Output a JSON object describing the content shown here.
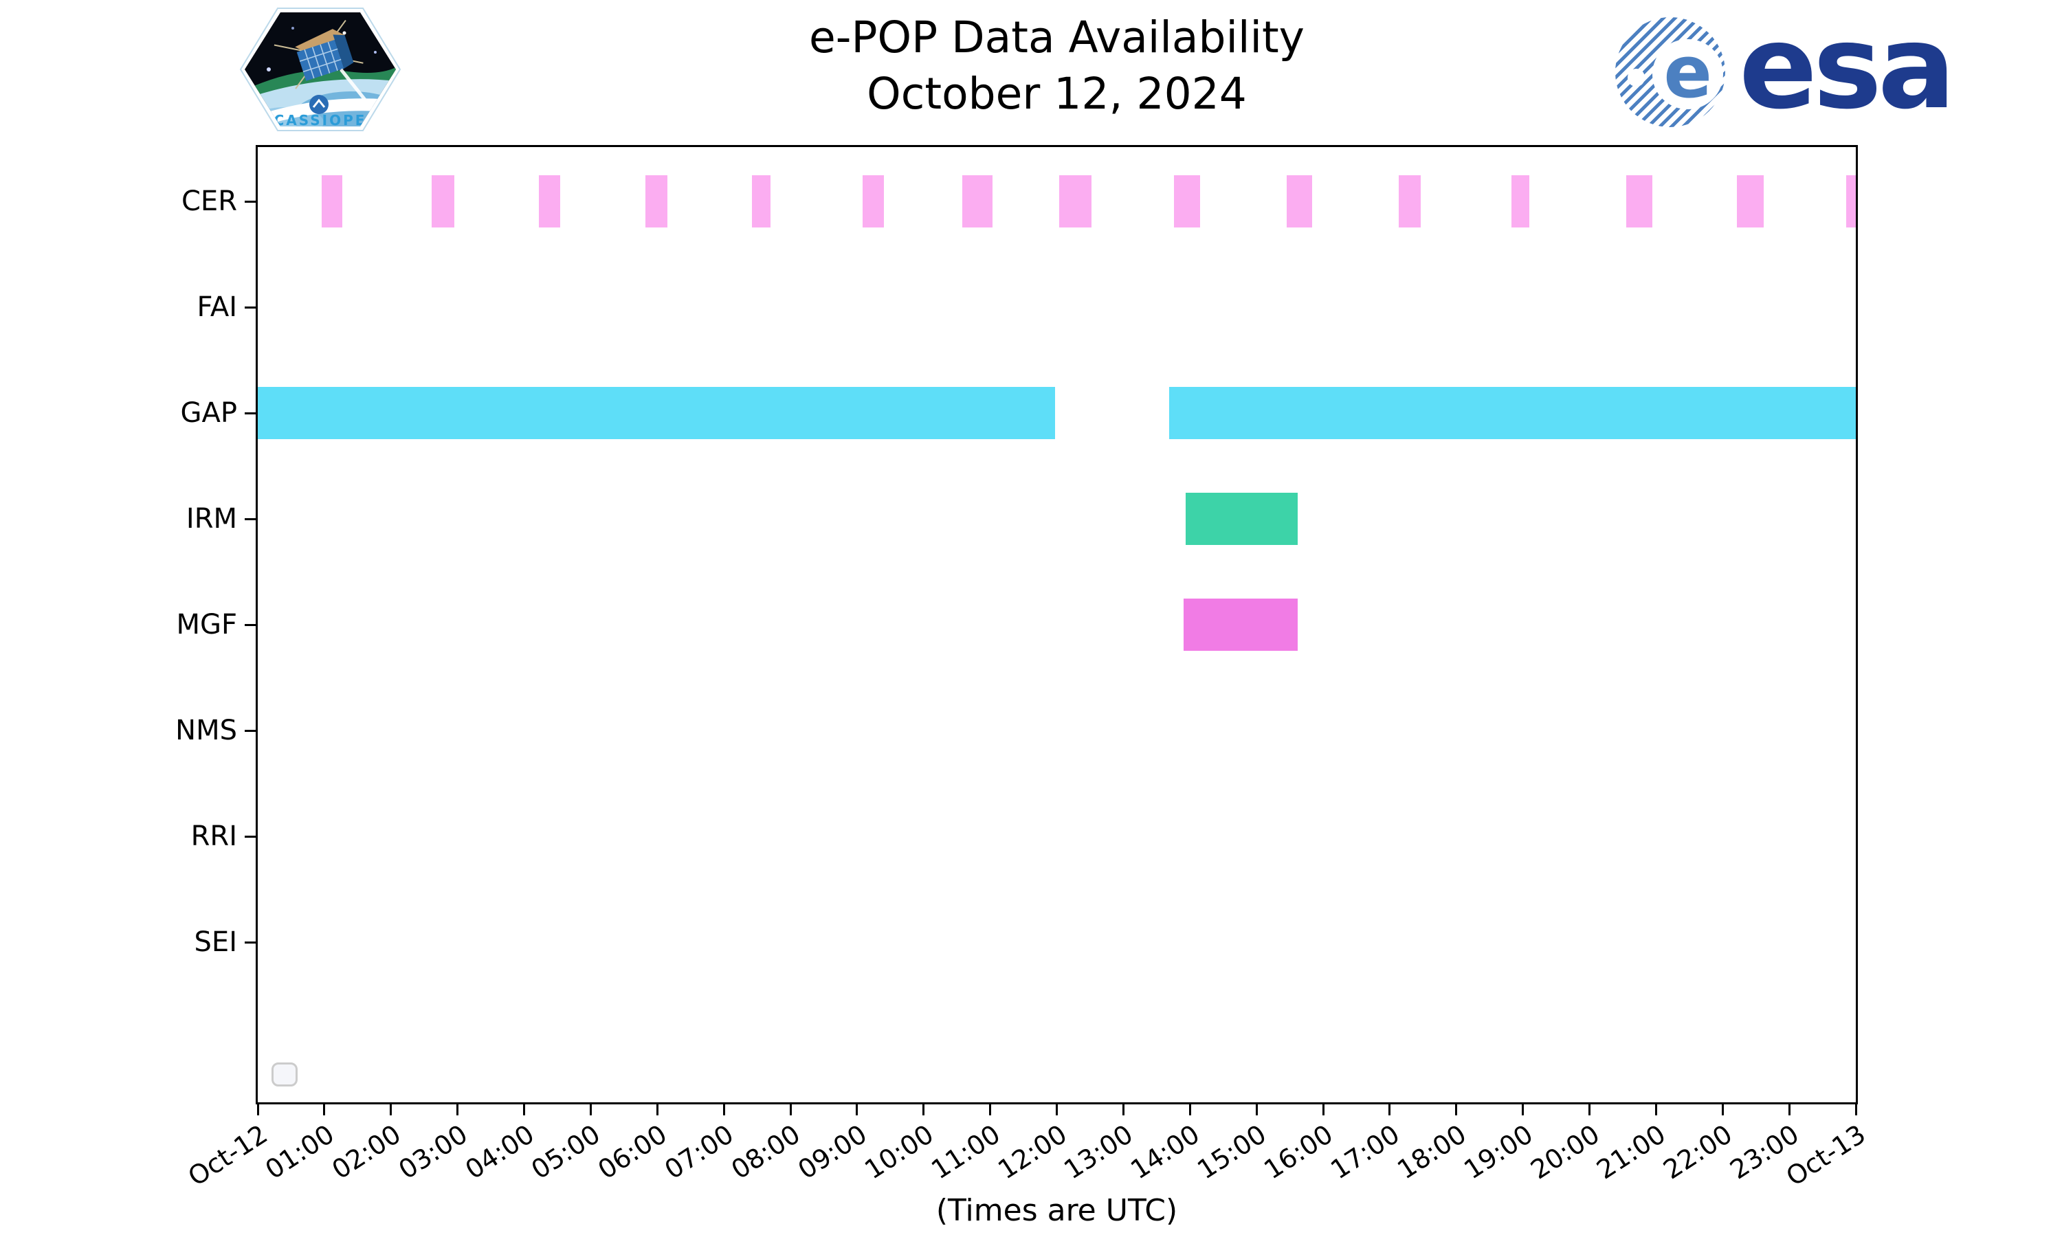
{
  "header": {
    "title_line1": "e-POP Data Availability",
    "title_line2": "October 12, 2024",
    "patch_label": "CASSIOPE",
    "esa_wordmark": "esa",
    "esa_globe_letter": "e"
  },
  "colors": {
    "cer_bar": "#fbadf1",
    "gap_bar": "#5edef8",
    "irm_bar": "#3dd3a8",
    "mgf_bar": "#f17ce5",
    "axis": "#000000",
    "legend_border": "#cccccc",
    "esa_navy": "#1e3b8d",
    "esa_stripe_blue": "#4c80c1",
    "patch_text_blue": "#2b9cd8"
  },
  "chart_data": {
    "type": "timeline",
    "title": "e-POP Data Availability October 12, 2024",
    "x_axis": {
      "note": "(Times are UTC)",
      "range_hours": [
        0,
        24
      ],
      "tick_labels": [
        "Oct-12",
        "01:00",
        "02:00",
        "03:00",
        "04:00",
        "05:00",
        "06:00",
        "07:00",
        "08:00",
        "09:00",
        "10:00",
        "11:00",
        "12:00",
        "13:00",
        "14:00",
        "15:00",
        "16:00",
        "17:00",
        "18:00",
        "19:00",
        "20:00",
        "21:00",
        "22:00",
        "23:00",
        "Oct-13"
      ]
    },
    "interval_unit": "hours_utc",
    "rows": [
      {
        "label": "CER",
        "color": "#fbadf1",
        "intervals": [
          [
            0.96,
            1.27
          ],
          [
            2.61,
            2.95
          ],
          [
            4.22,
            4.54
          ],
          [
            5.82,
            6.15
          ],
          [
            7.42,
            7.7
          ],
          [
            9.08,
            9.4
          ],
          [
            10.58,
            11.04
          ],
          [
            12.04,
            12.52
          ],
          [
            13.76,
            14.15
          ],
          [
            15.45,
            15.84
          ],
          [
            17.14,
            17.47
          ],
          [
            18.83,
            19.1
          ],
          [
            20.55,
            20.94
          ],
          [
            22.21,
            22.62
          ],
          [
            23.86,
            24.0
          ]
        ]
      },
      {
        "label": "FAI",
        "color": "#fbadf1",
        "intervals": []
      },
      {
        "label": "GAP",
        "color": "#5edef8",
        "intervals": [
          [
            0.0,
            11.97
          ],
          [
            13.69,
            24.0
          ]
        ]
      },
      {
        "label": "IRM",
        "color": "#3dd3a8",
        "intervals": [
          [
            13.94,
            15.62
          ]
        ]
      },
      {
        "label": "MGF",
        "color": "#f17ce5",
        "intervals": [
          [
            13.9,
            15.62
          ]
        ]
      },
      {
        "label": "NMS",
        "color": "#fbadf1",
        "intervals": []
      },
      {
        "label": "RRI",
        "color": "#fbadf1",
        "intervals": []
      },
      {
        "label": "SEI",
        "color": "#fbadf1",
        "intervals": []
      }
    ],
    "legend": {
      "visible": true,
      "entries": []
    }
  }
}
